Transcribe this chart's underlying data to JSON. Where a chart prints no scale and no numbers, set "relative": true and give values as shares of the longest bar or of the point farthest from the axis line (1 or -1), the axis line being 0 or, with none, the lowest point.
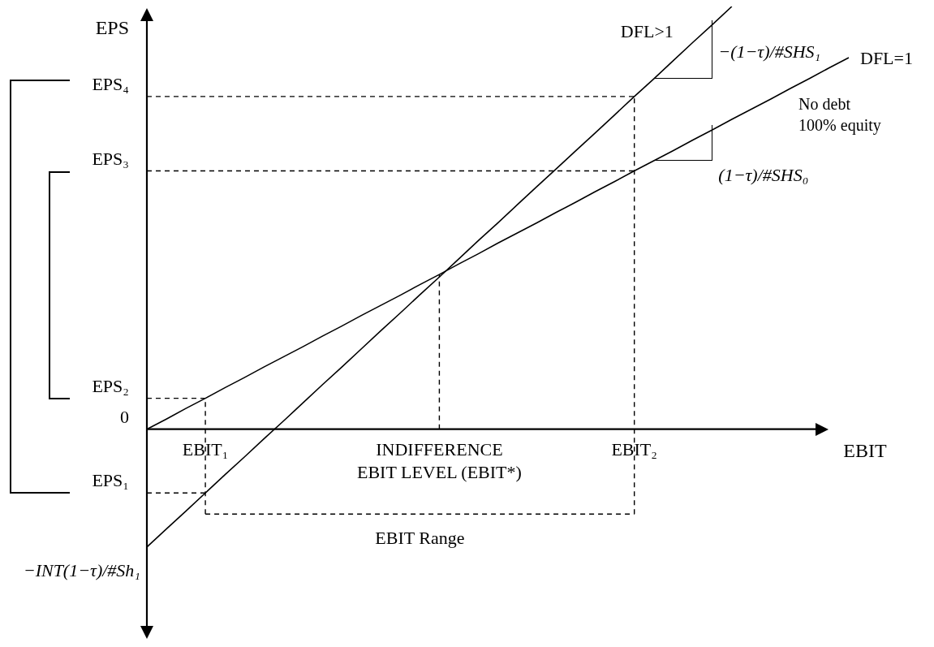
{
  "chart_data": {
    "type": "line",
    "relative": true,
    "xlabel": "EBIT",
    "ylabel": "EPS",
    "categories": [
      null,
      null,
      null,
      "EBIT₁",
      null,
      null,
      null,
      null,
      null,
      null,
      null,
      null,
      null,
      null,
      null,
      "INDIFFERENCE\nEBIT LEVEL (EBIT*)",
      null,
      null,
      null,
      null,
      null,
      null,
      null,
      null,
      null,
      "EBIT₂",
      null,
      null,
      null,
      null,
      null,
      null,
      null,
      null,
      null,
      null,
      null
    ],
    "series": [
      {
        "name": "DFL>1",
        "color": "#000000",
        "values": [
          -0.279,
          -0.236,
          -0.194,
          -0.151,
          -0.108,
          -0.066,
          -0.023,
          0.019,
          0.062,
          0.105,
          0.147,
          0.19,
          0.233,
          0.275,
          0.318,
          0.36,
          0.403,
          0.446,
          0.488,
          0.531,
          0.574,
          0.616,
          0.659,
          0.701,
          0.744,
          0.787,
          0.829,
          0.872,
          0.915,
          0.957,
          1,
          null,
          null,
          null,
          null,
          null,
          null
        ]
      },
      {
        "name": "DFL=1",
        "color": "#000000",
        "values": [
          0,
          0.024,
          0.049,
          0.073,
          0.098,
          0.122,
          0.147,
          0.171,
          0.195,
          0.22,
          0.244,
          0.269,
          0.293,
          0.317,
          0.342,
          0.366,
          0.391,
          0.415,
          0.44,
          0.464,
          0.488,
          0.513,
          0.537,
          0.562,
          0.586,
          0.611,
          0.635,
          0.659,
          0.684,
          0.708,
          0.733,
          0.757,
          0.781,
          0.806,
          0.83,
          0.855,
          0.879
        ]
      }
    ],
    "ref_lines": [
      {
        "axis": "y",
        "value": 0.787,
        "label": "EPS₄",
        "line_style": "dashed"
      },
      {
        "axis": "y",
        "value": 0.611,
        "label": "EPS₃",
        "line_style": "dashed"
      },
      {
        "axis": "y",
        "value": 0.073,
        "label": "EPS₂",
        "line_style": "dashed"
      },
      {
        "axis": "y",
        "value": -0.151,
        "label": "EPS₁",
        "line_style": "dashed"
      },
      {
        "axis": "y",
        "value": -0.201,
        "label": "EBIT Range",
        "line_style": "dashed"
      },
      {
        "axis": "x",
        "value": "EBIT₁",
        "line_style": "dashed"
      },
      {
        "axis": "x",
        "value": "INDIFFERENCE\nEBIT LEVEL (EBIT*)",
        "line_style": "dashed"
      },
      {
        "axis": "x",
        "value": "EBIT₂",
        "line_style": "dashed"
      }
    ],
    "annotations": [
      "−(1−τ)/#SHS₁",
      "(1−τ)/#SHS₀",
      "No debt\n100% equity",
      "0",
      "−INT(1−τ)/#Sh₁"
    ]
  }
}
